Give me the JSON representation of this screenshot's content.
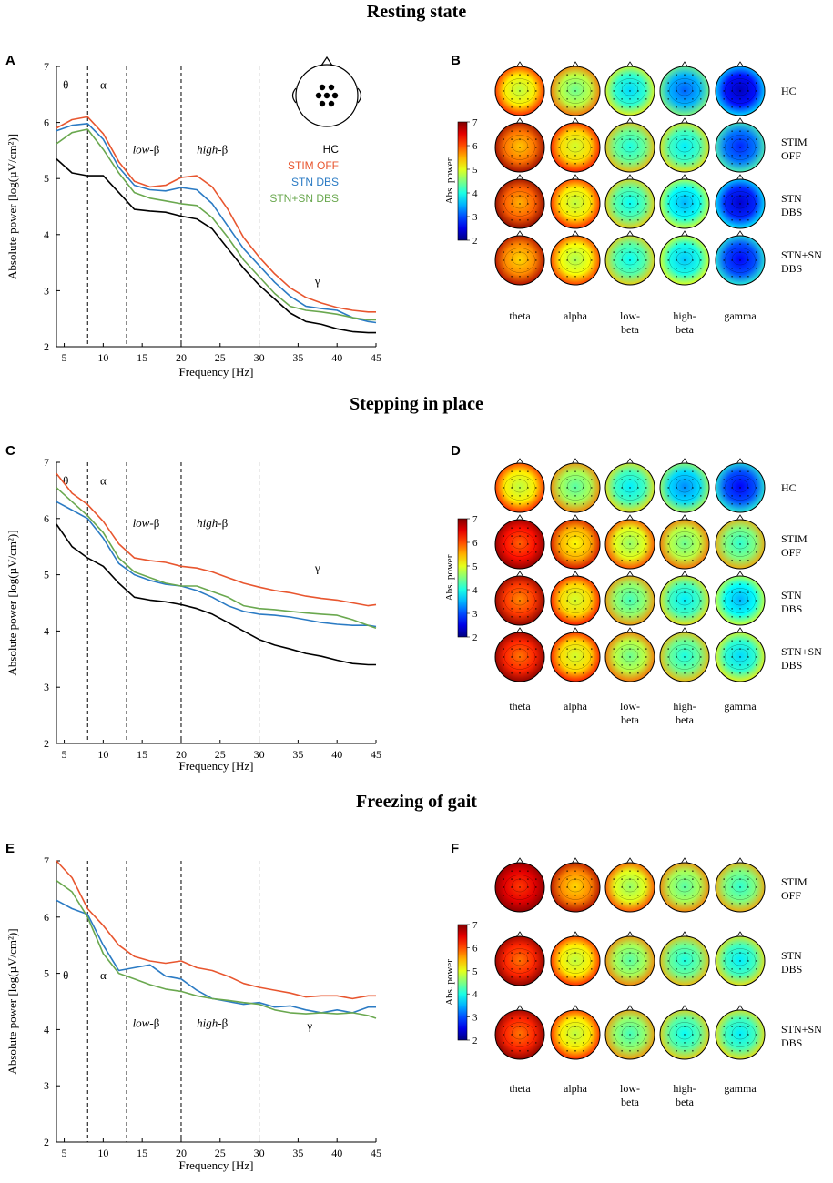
{
  "sections": [
    {
      "title": "Resting state"
    },
    {
      "title": "Stepping in place"
    },
    {
      "title": "Freezing of gait"
    }
  ],
  "colors": {
    "HC": "#000000",
    "STIM OFF": "#e8562f",
    "STN DBS": "#2b7bc4",
    "STN+SN DBS": "#6aa84f"
  },
  "colorbar": {
    "label": "Abs. power",
    "ticks": [
      "7",
      "6",
      "5",
      "4",
      "3",
      "2"
    ]
  },
  "chart_data": [
    {
      "panel": "A",
      "type": "line",
      "xlabel": "Frequency [Hz]",
      "ylabel": "Absolute power [log(µV/cm²)]",
      "xlim": [
        4,
        45
      ],
      "ylim": [
        2,
        7
      ],
      "xticks": [
        "5",
        "10",
        "15",
        "20",
        "25",
        "30",
        "35",
        "40",
        "45"
      ],
      "yticks": [
        "2",
        "3",
        "4",
        "5",
        "6",
        "7"
      ],
      "vlines": [
        8,
        13,
        20,
        30
      ],
      "bands": [
        {
          "text": "θ",
          "x": 5.2,
          "y": 6.6
        },
        {
          "text": "α",
          "x": 10,
          "y": 6.6
        },
        {
          "text": "low-β",
          "x": 15.5,
          "y": 5.45
        },
        {
          "text": "high-β",
          "x": 24,
          "y": 5.45
        },
        {
          "text": "γ",
          "x": 37.5,
          "y": 3.1
        }
      ],
      "legend": [
        "HC",
        "STIM OFF",
        "STN DBS",
        "STN+SN DBS"
      ],
      "head_icon": true,
      "x": [
        4,
        6,
        8,
        10,
        12,
        14,
        16,
        18,
        20,
        22,
        24,
        26,
        28,
        30,
        32,
        34,
        36,
        38,
        40,
        42,
        44,
        45
      ],
      "series": [
        {
          "name": "HC",
          "values": [
            5.35,
            5.1,
            5.05,
            5.05,
            4.75,
            4.45,
            4.42,
            4.4,
            4.33,
            4.28,
            4.1,
            3.75,
            3.4,
            3.1,
            2.85,
            2.6,
            2.45,
            2.4,
            2.32,
            2.27,
            2.25,
            2.25
          ]
        },
        {
          "name": "STIM OFF",
          "values": [
            5.9,
            6.05,
            6.1,
            5.8,
            5.3,
            4.95,
            4.85,
            4.88,
            5.02,
            5.05,
            4.85,
            4.45,
            3.95,
            3.6,
            3.3,
            3.05,
            2.88,
            2.78,
            2.7,
            2.65,
            2.62,
            2.62
          ]
        },
        {
          "name": "STN DBS",
          "values": [
            5.85,
            5.95,
            5.98,
            5.7,
            5.2,
            4.88,
            4.8,
            4.78,
            4.84,
            4.8,
            4.55,
            4.15,
            3.75,
            3.45,
            3.15,
            2.9,
            2.72,
            2.68,
            2.65,
            2.52,
            2.45,
            2.43
          ]
        },
        {
          "name": "STN+SN DBS",
          "values": [
            5.62,
            5.82,
            5.88,
            5.52,
            5.1,
            4.75,
            4.65,
            4.6,
            4.55,
            4.52,
            4.3,
            3.95,
            3.55,
            3.25,
            2.95,
            2.72,
            2.65,
            2.62,
            2.58,
            2.52,
            2.48,
            2.48
          ]
        }
      ]
    },
    {
      "panel": "C",
      "type": "line",
      "xlabel": "Frequency [Hz]",
      "ylabel": "Absolute power [log(µV/cm²)]",
      "xlim": [
        4,
        45
      ],
      "ylim": [
        2,
        7
      ],
      "xticks": [
        "5",
        "10",
        "15",
        "20",
        "25",
        "30",
        "35",
        "40",
        "45"
      ],
      "yticks": [
        "2",
        "3",
        "4",
        "5",
        "6",
        "7"
      ],
      "vlines": [
        8,
        13,
        20,
        30
      ],
      "bands": [
        {
          "text": "θ",
          "x": 5.2,
          "y": 6.6
        },
        {
          "text": "α",
          "x": 10,
          "y": 6.6
        },
        {
          "text": "low-β",
          "x": 15.5,
          "y": 5.85
        },
        {
          "text": "high-β",
          "x": 24,
          "y": 5.85
        },
        {
          "text": "γ",
          "x": 37.5,
          "y": 5.05
        }
      ],
      "legend": [],
      "head_icon": false,
      "x": [
        4,
        6,
        8,
        10,
        12,
        14,
        16,
        18,
        20,
        22,
        24,
        26,
        28,
        30,
        32,
        34,
        36,
        38,
        40,
        42,
        44,
        45
      ],
      "series": [
        {
          "name": "HC",
          "values": [
            5.9,
            5.5,
            5.3,
            5.15,
            4.85,
            4.6,
            4.55,
            4.52,
            4.47,
            4.4,
            4.3,
            4.15,
            4.0,
            3.85,
            3.75,
            3.68,
            3.6,
            3.55,
            3.48,
            3.42,
            3.4,
            3.4
          ]
        },
        {
          "name": "STIM OFF",
          "values": [
            6.8,
            6.45,
            6.25,
            5.95,
            5.55,
            5.3,
            5.25,
            5.22,
            5.15,
            5.12,
            5.05,
            4.95,
            4.85,
            4.78,
            4.72,
            4.68,
            4.62,
            4.58,
            4.55,
            4.5,
            4.45,
            4.47
          ]
        },
        {
          "name": "STN DBS",
          "values": [
            6.3,
            6.15,
            6.0,
            5.65,
            5.2,
            5.0,
            4.9,
            4.83,
            4.8,
            4.72,
            4.6,
            4.45,
            4.35,
            4.3,
            4.28,
            4.25,
            4.2,
            4.15,
            4.12,
            4.1,
            4.1,
            4.08
          ]
        },
        {
          "name": "STN+SN DBS",
          "values": [
            6.55,
            6.3,
            6.05,
            5.75,
            5.3,
            5.05,
            4.95,
            4.85,
            4.8,
            4.8,
            4.7,
            4.6,
            4.45,
            4.4,
            4.38,
            4.35,
            4.32,
            4.3,
            4.28,
            4.2,
            4.1,
            4.05
          ]
        }
      ]
    },
    {
      "panel": "E",
      "type": "line",
      "xlabel": "Frequency [Hz]",
      "ylabel": "Absolute power [log(µV/cm²)]",
      "xlim": [
        4,
        45
      ],
      "ylim": [
        2,
        7
      ],
      "xticks": [
        "5",
        "10",
        "15",
        "20",
        "25",
        "30",
        "35",
        "40",
        "45"
      ],
      "yticks": [
        "2",
        "3",
        "4",
        "5",
        "6",
        "7"
      ],
      "vlines": [
        8,
        13,
        20,
        30
      ],
      "bands": [
        {
          "text": "θ",
          "x": 5.2,
          "y": 4.9
        },
        {
          "text": "α",
          "x": 10,
          "y": 4.9
        },
        {
          "text": "low-β",
          "x": 15.5,
          "y": 4.05
        },
        {
          "text": "high-β",
          "x": 24,
          "y": 4.05
        },
        {
          "text": "γ",
          "x": 36.5,
          "y": 4.0
        }
      ],
      "legend": [],
      "head_icon": false,
      "x": [
        4,
        6,
        8,
        10,
        12,
        14,
        16,
        18,
        20,
        22,
        24,
        26,
        28,
        30,
        32,
        34,
        36,
        38,
        40,
        42,
        44,
        45
      ],
      "series": [
        {
          "name": "STIM OFF",
          "values": [
            7.0,
            6.7,
            6.15,
            5.85,
            5.5,
            5.3,
            5.22,
            5.18,
            5.22,
            5.1,
            5.05,
            4.95,
            4.82,
            4.75,
            4.7,
            4.65,
            4.58,
            4.6,
            4.6,
            4.55,
            4.6,
            4.6
          ]
        },
        {
          "name": "STN DBS",
          "values": [
            6.3,
            6.15,
            6.05,
            5.5,
            5.05,
            5.1,
            5.15,
            4.95,
            4.9,
            4.7,
            4.55,
            4.5,
            4.45,
            4.48,
            4.4,
            4.42,
            4.35,
            4.3,
            4.35,
            4.3,
            4.4,
            4.4
          ]
        },
        {
          "name": "STN+SN DBS",
          "values": [
            6.65,
            6.45,
            6.0,
            5.35,
            5.0,
            4.9,
            4.8,
            4.72,
            4.68,
            4.6,
            4.55,
            4.52,
            4.48,
            4.45,
            4.35,
            4.3,
            4.28,
            4.3,
            4.28,
            4.3,
            4.25,
            4.2
          ]
        }
      ]
    }
  ],
  "topo_panels": [
    {
      "panel": "B",
      "band_labels": [
        "theta",
        "alpha",
        "low-\nbeta",
        "high-\nbeta",
        "gamma"
      ],
      "conditions": [
        "HC",
        "STIM\nOFF",
        "STN\nDBS",
        "STN+SN\nDBS"
      ],
      "power": [
        [
          5.2,
          4.8,
          4.1,
          3.5,
          2.7
        ],
        [
          5.8,
          5.3,
          4.4,
          4.2,
          3.2
        ],
        [
          5.9,
          5.2,
          4.3,
          3.9,
          2.8
        ],
        [
          5.7,
          5.1,
          4.3,
          4.0,
          3.0
        ]
      ]
    },
    {
      "panel": "D",
      "band_labels": [
        "theta",
        "alpha",
        "low-\nbeta",
        "high-\nbeta",
        "gamma"
      ],
      "conditions": [
        "HC",
        "STIM\nOFF",
        "STN\nDBS",
        "STN+SN\nDBS"
      ],
      "power": [
        [
          5.2,
          4.7,
          4.2,
          3.7,
          3.0
        ],
        [
          6.3,
          5.5,
          5.0,
          4.8,
          4.5
        ],
        [
          6.1,
          5.3,
          4.6,
          4.2,
          3.9
        ],
        [
          6.2,
          5.3,
          4.8,
          4.4,
          4.1
        ]
      ]
    },
    {
      "panel": "F",
      "band_labels": [
        "theta",
        "alpha",
        "low-\nbeta",
        "high-\nbeta",
        "gamma"
      ],
      "conditions": [
        "STIM\nOFF",
        "STN\nDBS",
        "STN+SN\nDBS"
      ],
      "power": [
        [
          6.5,
          5.7,
          5.0,
          4.7,
          4.5
        ],
        [
          6.2,
          5.2,
          4.7,
          4.4,
          4.2
        ],
        [
          6.2,
          5.2,
          4.6,
          4.3,
          4.2
        ]
      ]
    }
  ]
}
